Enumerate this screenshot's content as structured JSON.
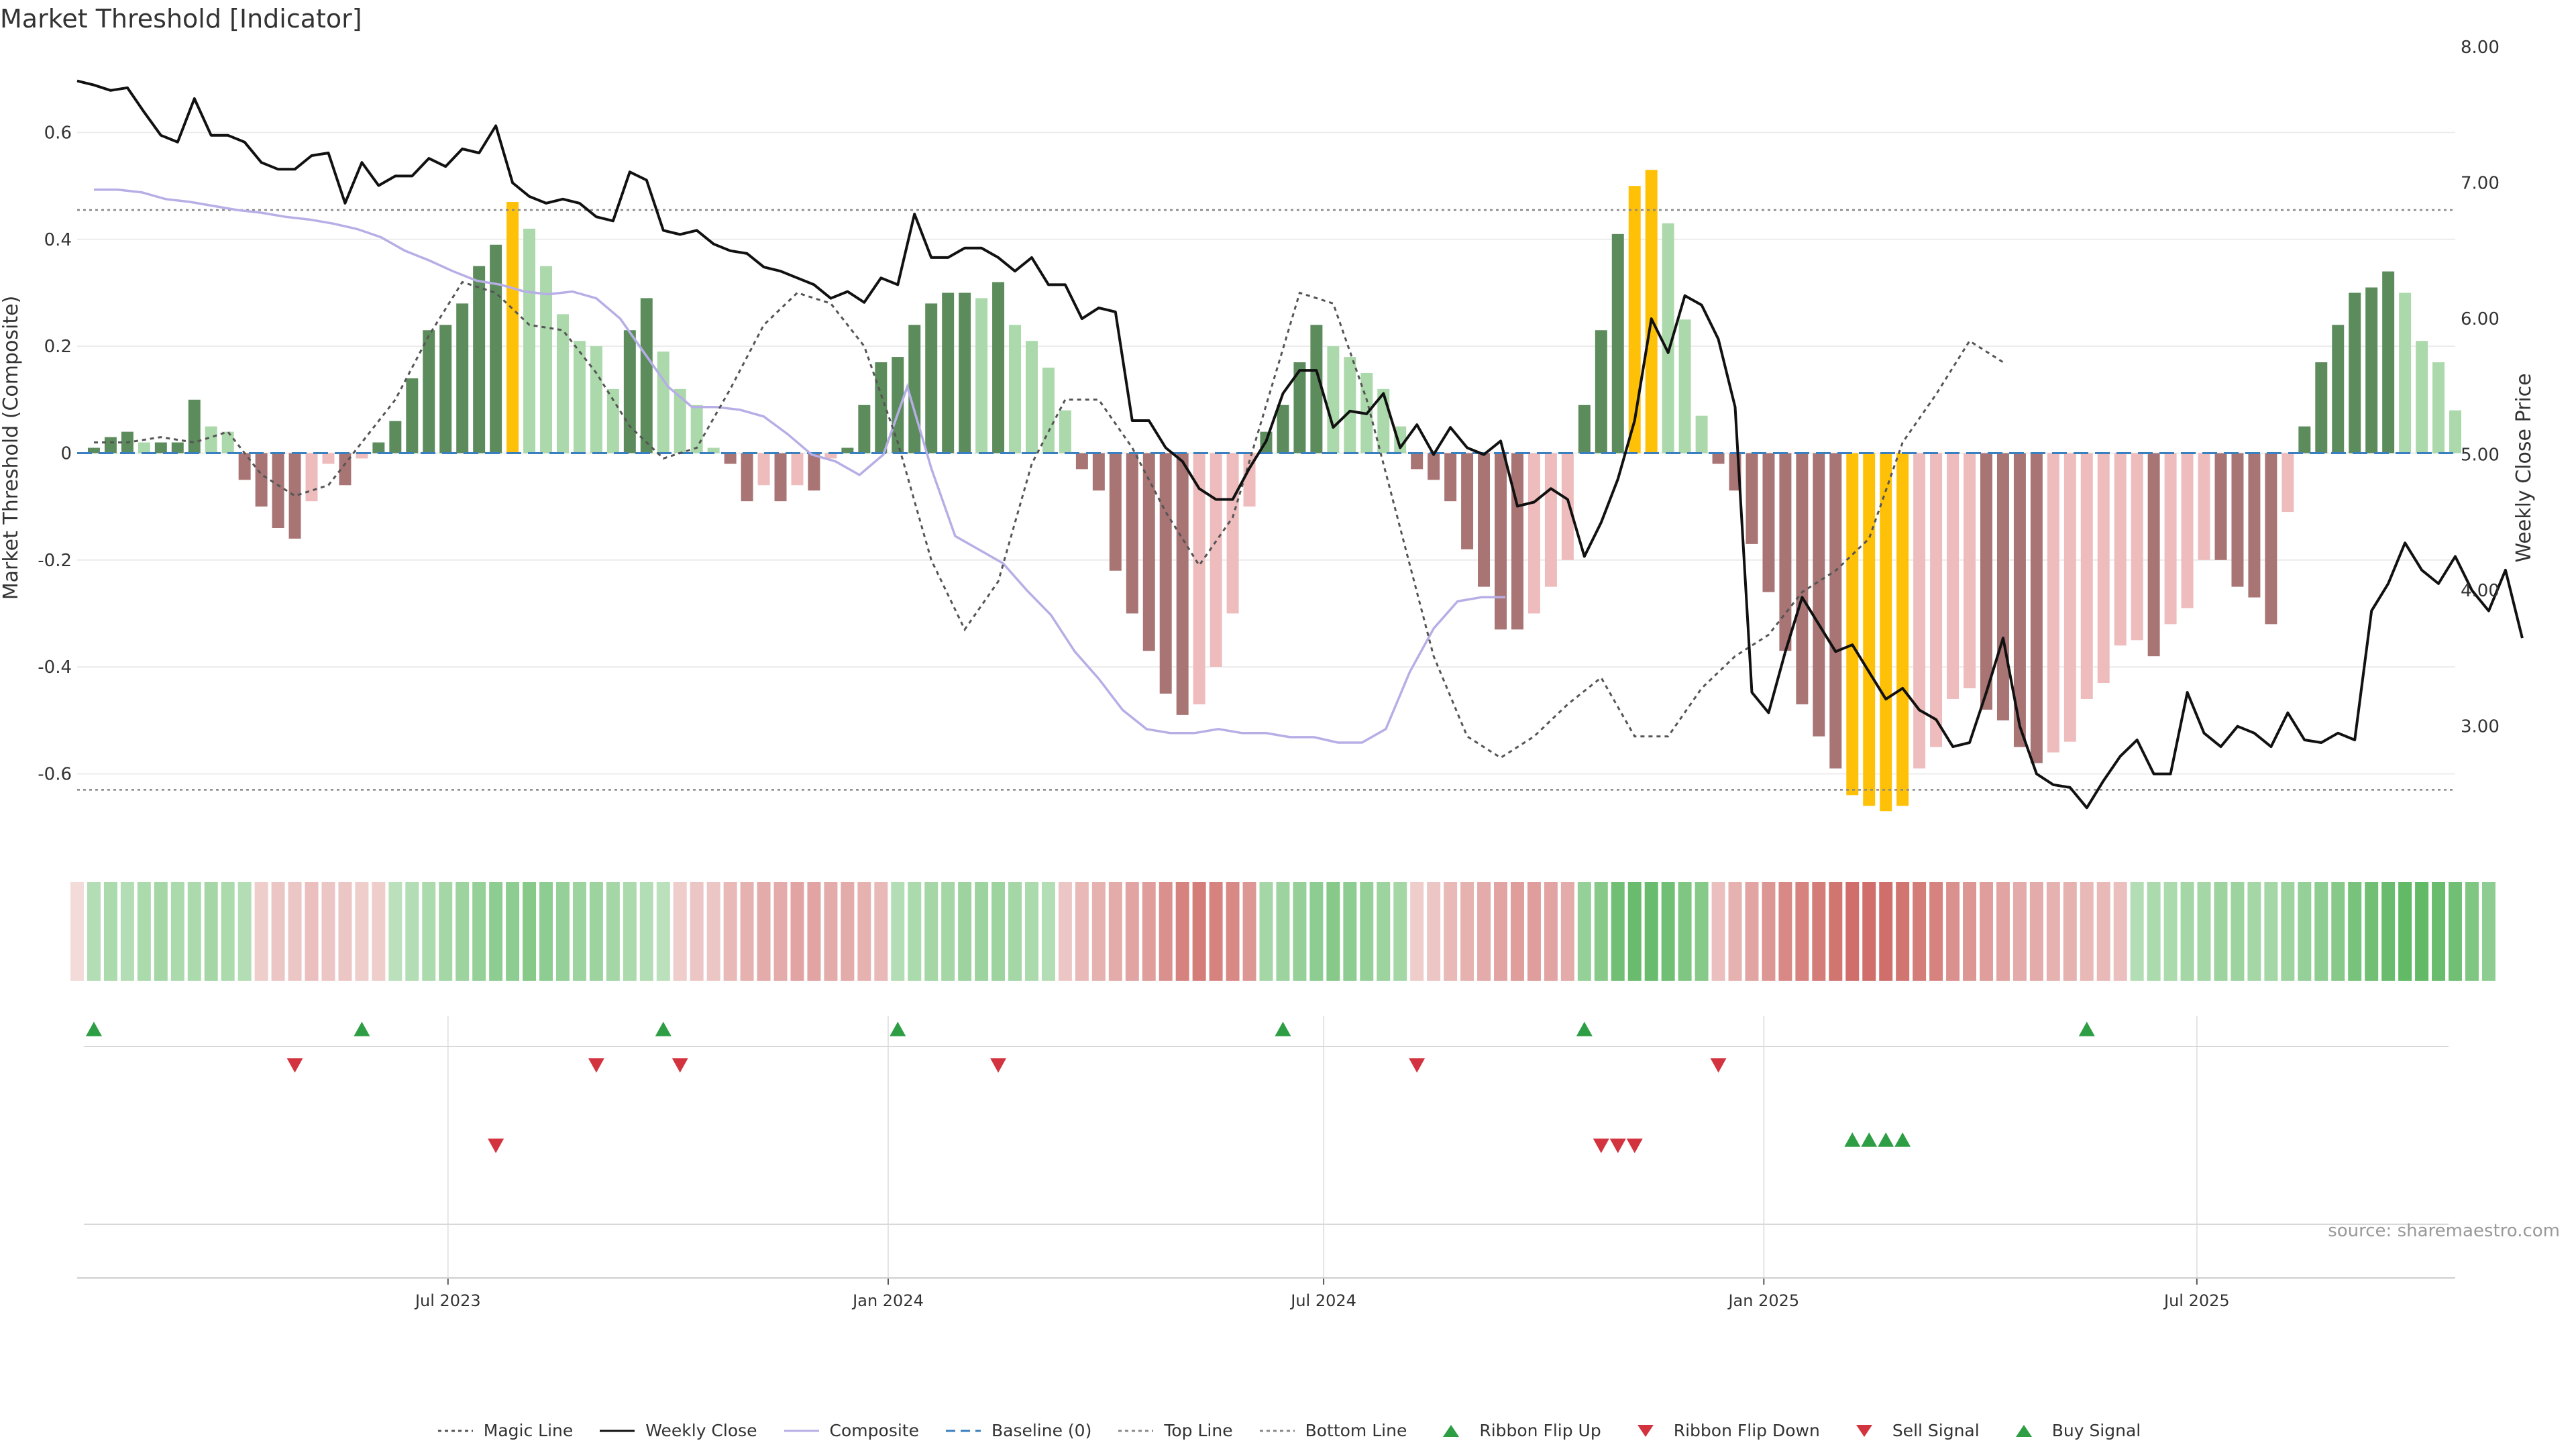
{
  "title": "Market Threshold [Indicator]",
  "source": "source: sharemaestro.com",
  "colors": {
    "bull_strong": "#5c8c5c",
    "bull_weak": "#acd9ac",
    "bear_strong": "#a87474",
    "bear_weak": "#eebcbc",
    "extreme": "#ffc107",
    "price": "#111111",
    "composite": "#b7aee6",
    "magic": "#555555",
    "baseline": "#3a7fbf",
    "threshold": "#888888",
    "buy": "#2e9e44",
    "sell": "#d2333f",
    "ribbon_green": "#4caf50",
    "ribbon_red": "#c85a55"
  },
  "legend": [
    {
      "key": "magic",
      "label": "Magic Line",
      "icon": "dotted-line"
    },
    {
      "key": "price",
      "label": "Weekly Close",
      "icon": "solid-line"
    },
    {
      "key": "composite",
      "label": "Composite",
      "icon": "solid-line"
    },
    {
      "key": "baseline",
      "label": "Baseline (0)",
      "icon": "dashed-line"
    },
    {
      "key": "top",
      "label": "Top Line",
      "icon": "dotted-line"
    },
    {
      "key": "bottom",
      "label": "Bottom Line",
      "icon": "dotted-line"
    },
    {
      "key": "flip_up",
      "label": "Ribbon Flip Up",
      "icon": "triangle-up-icon"
    },
    {
      "key": "flip_down",
      "label": "Ribbon Flip Down",
      "icon": "triangle-down-icon"
    },
    {
      "key": "sell",
      "label": "Sell Signal",
      "icon": "triangle-down-icon"
    },
    {
      "key": "buy",
      "label": "Buy Signal",
      "icon": "triangle-up-icon"
    }
  ],
  "chart_data": {
    "type": "bar",
    "x_type": "date",
    "x_range": [
      "2023-01-27",
      "2025-10-17"
    ],
    "x_ticks": [
      {
        "date": "2023-07-01",
        "label": "Jul 2023"
      },
      {
        "date": "2024-01-01",
        "label": "Jan 2024"
      },
      {
        "date": "2024-07-01",
        "label": "Jul 2024"
      },
      {
        "date": "2025-01-01",
        "label": "Jan 2025"
      },
      {
        "date": "2025-07-01",
        "label": "Jul 2025"
      }
    ],
    "y_left": {
      "label": "Market Threshold (Composite)",
      "range": [
        -0.74,
        0.76
      ],
      "ticks": [
        0.6,
        0.4,
        0.2,
        0,
        -0.2,
        -0.4,
        -0.6
      ],
      "tick_labels": [
        "0.6",
        "0.4",
        "0.2",
        "0",
        "-0.2",
        "-0.4",
        "-0.6"
      ]
    },
    "y_right": {
      "label": "Weekly Close Price",
      "range": [
        2.1,
        8.0
      ],
      "ticks": [
        8,
        7,
        6,
        5,
        4,
        3
      ],
      "tick_labels": [
        "8.00",
        "7.00",
        "6.00",
        "5.00",
        "4.00",
        "3.00"
      ]
    },
    "top_line": 0.455,
    "bottom_line": -0.63,
    "grid": true,
    "series": [
      {
        "name": "Composite",
        "kind": "bar",
        "start_date": "2023-02-03",
        "step_days": 7,
        "values": [
          0.01,
          0.03,
          0.04,
          0.02,
          0.02,
          0.02,
          0.1,
          0.05,
          0.04,
          -0.05,
          -0.1,
          -0.14,
          -0.16,
          -0.09,
          -0.02,
          -0.06,
          -0.01,
          0.02,
          0.06,
          0.14,
          0.23,
          0.24,
          0.28,
          0.35,
          0.39,
          0.47,
          0.42,
          0.35,
          0.26,
          0.21,
          0.2,
          0.12,
          0.23,
          0.29,
          0.19,
          0.12,
          0.09,
          0.01,
          -0.02,
          -0.09,
          -0.06,
          -0.09,
          -0.06,
          -0.07,
          -0.01,
          0.01,
          0.09,
          0.17,
          0.18,
          0.24,
          0.28,
          0.3,
          0.3,
          0.29,
          0.32,
          0.24,
          0.21,
          0.16,
          0.08,
          -0.03,
          -0.07,
          -0.22,
          -0.3,
          -0.37,
          -0.45,
          -0.49,
          -0.47,
          -0.4,
          -0.3,
          -0.1,
          0.04,
          0.09,
          0.17,
          0.24,
          0.2,
          0.18,
          0.15,
          0.12,
          0.05,
          -0.03,
          -0.05,
          -0.09,
          -0.18,
          -0.25,
          -0.33,
          -0.33,
          -0.3,
          -0.25,
          -0.2,
          0.09,
          0.23,
          0.41,
          0.5,
          0.53,
          0.43,
          0.25,
          0.07,
          -0.02,
          -0.07,
          -0.17,
          -0.26,
          -0.37,
          -0.47,
          -0.53,
          -0.59,
          -0.64,
          -0.66,
          -0.67,
          -0.66,
          -0.59,
          -0.55,
          -0.46,
          -0.44,
          -0.48,
          -0.5,
          -0.55,
          -0.58,
          -0.56,
          -0.54,
          -0.46,
          -0.43,
          -0.36,
          -0.35,
          -0.38,
          -0.32,
          -0.29,
          -0.2,
          -0.2,
          -0.25,
          -0.27,
          -0.32,
          -0.11,
          0.05,
          0.17,
          0.24,
          0.3,
          0.31,
          0.34,
          0.3,
          0.21,
          0.17,
          0.08
        ]
      },
      {
        "name": "Weekly Close",
        "kind": "line",
        "axis": "right",
        "start_date": "2023-01-27",
        "step_days": 7,
        "values": [
          7.75,
          7.72,
          7.68,
          7.7,
          7.52,
          7.35,
          7.3,
          7.62,
          7.35,
          7.35,
          7.3,
          7.15,
          7.1,
          7.1,
          7.2,
          7.22,
          6.85,
          7.15,
          6.98,
          7.05,
          7.05,
          7.18,
          7.12,
          7.25,
          7.22,
          7.42,
          7.0,
          6.9,
          6.85,
          6.88,
          6.85,
          6.75,
          6.72,
          7.08,
          7.02,
          6.65,
          6.62,
          6.65,
          6.55,
          6.5,
          6.48,
          6.38,
          6.35,
          6.3,
          6.25,
          6.15,
          6.2,
          6.12,
          6.3,
          6.25,
          6.77,
          6.45,
          6.45,
          6.52,
          6.52,
          6.45,
          6.35,
          6.45,
          6.25,
          6.25,
          6.0,
          6.08,
          6.05,
          5.25,
          5.25,
          5.05,
          4.95,
          4.75,
          4.67,
          4.67,
          4.9,
          5.1,
          5.45,
          5.62,
          5.62,
          5.2,
          5.32,
          5.3,
          5.45,
          5.05,
          5.22,
          5.0,
          5.2,
          5.05,
          5.0,
          5.1,
          4.62,
          4.65,
          4.75,
          4.67,
          4.25,
          4.5,
          4.82,
          5.25,
          6.0,
          5.75,
          6.17,
          6.1,
          5.85,
          5.35,
          3.25,
          3.1,
          3.55,
          3.95,
          3.75,
          3.55,
          3.6,
          3.4,
          3.2,
          3.28,
          3.12,
          3.05,
          2.85,
          2.88,
          3.25,
          3.65,
          3.0,
          2.65,
          2.57,
          2.55,
          2.4,
          2.6,
          2.78,
          2.9,
          2.65,
          2.65,
          3.25,
          2.95,
          2.85,
          3.0,
          2.95,
          2.85,
          3.1,
          2.9,
          2.88,
          2.95,
          2.9,
          3.85,
          4.05,
          4.35,
          4.15,
          4.05,
          4.25,
          4.0,
          3.85,
          4.15,
          3.65
        ]
      },
      {
        "name": "Composite",
        "kind": "line",
        "axis": "right",
        "start_date": "2023-02-03",
        "step_days": 10,
        "values": [
          6.95,
          6.95,
          6.93,
          6.88,
          6.86,
          6.83,
          6.8,
          6.78,
          6.75,
          6.73,
          6.7,
          6.66,
          6.6,
          6.5,
          6.43,
          6.35,
          6.28,
          6.25,
          6.2,
          6.18,
          6.2,
          6.15,
          6.0,
          5.75,
          5.5,
          5.35,
          5.35,
          5.33,
          5.28,
          5.15,
          5.0,
          4.95,
          4.85,
          5.0,
          5.5,
          4.9,
          4.4,
          4.3,
          4.2,
          4.0,
          3.82,
          3.55,
          3.35,
          3.12,
          2.98,
          2.95,
          2.95,
          2.98,
          2.95,
          2.95,
          2.92,
          2.92,
          2.88,
          2.88,
          2.98,
          3.4,
          3.72,
          3.92,
          3.95,
          3.95
        ]
      },
      {
        "name": "Magic Line",
        "kind": "line",
        "axis": "left",
        "start_date": "2023-02-03",
        "step_days": 14,
        "values": [
          0.02,
          0.02,
          0.03,
          0.02,
          0.04,
          -0.04,
          -0.08,
          -0.06,
          0.02,
          0.1,
          0.22,
          0.32,
          0.3,
          0.24,
          0.23,
          0.15,
          0.05,
          -0.01,
          0.01,
          0.12,
          0.24,
          0.3,
          0.28,
          0.2,
          0.02,
          -0.2,
          -0.33,
          -0.24,
          -0.02,
          0.1,
          0.1,
          0.01,
          -0.11,
          -0.21,
          -0.12,
          0.09,
          0.3,
          0.28,
          0.1,
          -0.14,
          -0.38,
          -0.53,
          -0.57,
          -0.53,
          -0.47,
          -0.42,
          -0.53,
          -0.53,
          -0.44,
          -0.38,
          -0.34,
          -0.26,
          -0.22,
          -0.16,
          0.02,
          0.11,
          0.21,
          0.17
        ]
      }
    ],
    "ribbon": {
      "start_date": "2023-01-27",
      "step_days": 7,
      "values": [
        -0.05,
        0.3,
        0.35,
        0.3,
        0.35,
        0.4,
        0.35,
        0.35,
        0.4,
        0.35,
        0.3,
        -0.15,
        -0.2,
        -0.2,
        -0.25,
        -0.2,
        -0.2,
        -0.15,
        -0.15,
        0.25,
        0.3,
        0.35,
        0.4,
        0.45,
        0.5,
        0.55,
        0.55,
        0.6,
        0.55,
        0.5,
        0.45,
        0.45,
        0.4,
        0.35,
        0.3,
        0.25,
        -0.15,
        -0.2,
        -0.2,
        -0.3,
        -0.35,
        -0.4,
        -0.4,
        -0.45,
        -0.45,
        -0.4,
        -0.4,
        -0.35,
        -0.3,
        0.3,
        0.35,
        0.4,
        0.4,
        0.45,
        0.45,
        0.45,
        0.4,
        0.35,
        0.3,
        -0.2,
        -0.3,
        -0.35,
        -0.4,
        -0.45,
        -0.5,
        -0.6,
        -0.7,
        -0.75,
        -0.7,
        -0.65,
        -0.55,
        0.4,
        0.45,
        0.5,
        0.55,
        0.6,
        0.55,
        0.5,
        0.45,
        0.4,
        -0.15,
        -0.2,
        -0.3,
        -0.35,
        -0.4,
        -0.45,
        -0.5,
        -0.5,
        -0.45,
        -0.4,
        0.5,
        0.6,
        0.75,
        0.8,
        0.8,
        0.75,
        0.65,
        0.6,
        -0.25,
        -0.35,
        -0.45,
        -0.55,
        -0.65,
        -0.7,
        -0.75,
        -0.8,
        -0.85,
        -0.85,
        -0.85,
        -0.8,
        -0.75,
        -0.7,
        -0.6,
        -0.55,
        -0.5,
        -0.45,
        -0.4,
        -0.4,
        -0.35,
        -0.35,
        -0.3,
        -0.3,
        -0.25,
        0.3,
        0.35,
        0.35,
        0.4,
        0.4,
        0.45,
        0.45,
        0.4,
        0.4,
        0.45,
        0.5,
        0.55,
        0.6,
        0.7,
        0.75,
        0.8,
        0.85,
        0.85,
        0.8,
        0.75,
        0.65,
        0.55
      ]
    },
    "ribbon_flips_up": [
      "2023-02-03",
      "2023-05-26",
      "2023-09-29",
      "2024-01-05",
      "2024-06-14",
      "2024-10-18",
      "2025-05-16"
    ],
    "ribbon_flips_down": [
      "2023-04-28",
      "2023-09-01",
      "2023-10-06",
      "2024-02-16",
      "2024-08-09",
      "2024-12-13"
    ],
    "sell_signals": [
      "2023-07-21",
      "2024-10-25",
      "2024-11-01",
      "2024-11-08"
    ],
    "buy_signals": [
      "2025-02-07",
      "2025-02-14",
      "2025-02-21",
      "2025-02-28"
    ]
  }
}
